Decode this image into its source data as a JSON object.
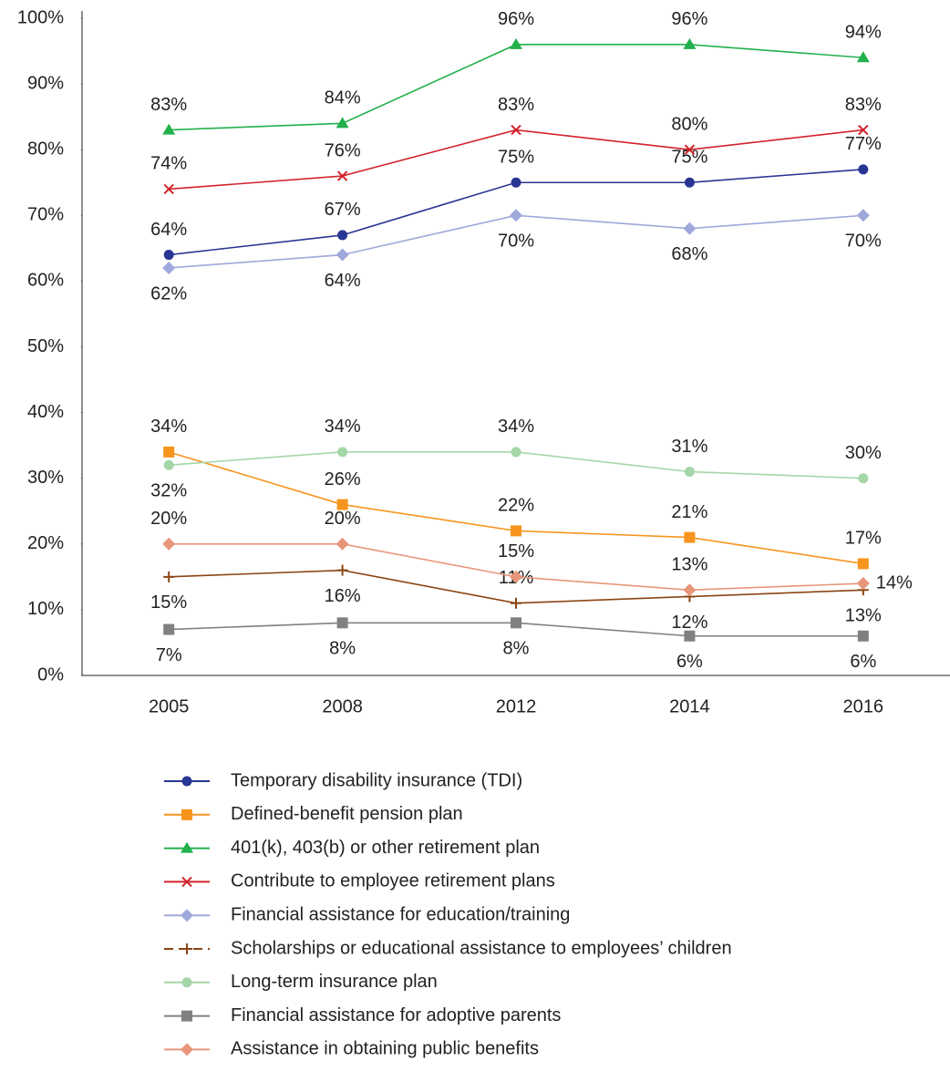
{
  "chart_data": {
    "type": "line",
    "categories": [
      "2005",
      "2008",
      "2012",
      "2014",
      "2016"
    ],
    "ylim": [
      0,
      100
    ],
    "yticks": [
      {
        "value": 0,
        "label": "0%"
      },
      {
        "value": 10,
        "label": "10%"
      },
      {
        "value": 20,
        "label": "20%"
      },
      {
        "value": 30,
        "label": "30%"
      },
      {
        "value": 40,
        "label": "40%"
      },
      {
        "value": 50,
        "label": "50%"
      },
      {
        "value": 60,
        "label": "60%"
      },
      {
        "value": 70,
        "label": "70%"
      },
      {
        "value": 80,
        "label": "80%"
      },
      {
        "value": 90,
        "label": "90%"
      },
      {
        "value": 100,
        "label": "100%"
      }
    ],
    "grid": false,
    "legend": "bottom",
    "series": [
      {
        "name": "Temporary disability insurance (TDI)",
        "color": "#283593",
        "marker": "circle",
        "values": [
          64,
          67,
          75,
          75,
          77
        ],
        "value_labels": [
          "64%",
          "67%",
          "75%",
          "75%",
          "77%"
        ]
      },
      {
        "name": "Defined-benefit pension plan",
        "color": "#f7941d",
        "marker": "square",
        "values": [
          34,
          26,
          22,
          21,
          17
        ],
        "value_labels": [
          "34%",
          "26%",
          "22%",
          "21%",
          "17%"
        ]
      },
      {
        "name": "401(k), 403(b) or other retirement plan",
        "color": "#22b14c",
        "marker": "triangle",
        "values": [
          83,
          84,
          96,
          96,
          94
        ],
        "value_labels": [
          "83%",
          "84%",
          "96%",
          "96%",
          "94%"
        ]
      },
      {
        "name": "Contribute to employee retirement plans",
        "color": "#d2232a",
        "marker": "x",
        "values": [
          74,
          76,
          83,
          80,
          83
        ],
        "value_labels": [
          "74%",
          "76%",
          "83%",
          "80%",
          "83%"
        ]
      },
      {
        "name": "Financial assistance for education/training",
        "color": "#9fa8da",
        "marker": "diamond",
        "values": [
          62,
          64,
          70,
          68,
          70
        ],
        "value_labels": [
          "62%",
          "64%",
          "70%",
          "68%",
          "70%"
        ]
      },
      {
        "name": "Scholarships or educational assistance to employees’ children",
        "color": "#8b4513",
        "marker": "plus",
        "dashed_legend": true,
        "values": [
          15,
          16,
          11,
          12,
          13
        ],
        "value_labels": [
          "15%",
          "16%",
          "11%",
          "12%",
          "13%"
        ]
      },
      {
        "name": "Long-term insurance plan",
        "color": "#a5d6a7",
        "marker": "circle",
        "values": [
          32,
          34,
          34,
          31,
          30
        ],
        "value_labels": [
          "32%",
          "34%",
          "34%",
          "31%",
          "30%"
        ]
      },
      {
        "name": "Financial assistance for adoptive parents",
        "color": "#808080",
        "marker": "square",
        "values": [
          7,
          8,
          8,
          6,
          6
        ],
        "value_labels": [
          "7%",
          "8%",
          "8%",
          "6%",
          "6%"
        ]
      },
      {
        "name": "Assistance in obtaining public benefits",
        "color": "#e8967a",
        "marker": "diamond",
        "values": [
          20,
          20,
          15,
          13,
          14
        ],
        "value_labels": [
          "20%",
          "20%",
          "15%",
          "13%",
          "14%"
        ]
      }
    ]
  }
}
